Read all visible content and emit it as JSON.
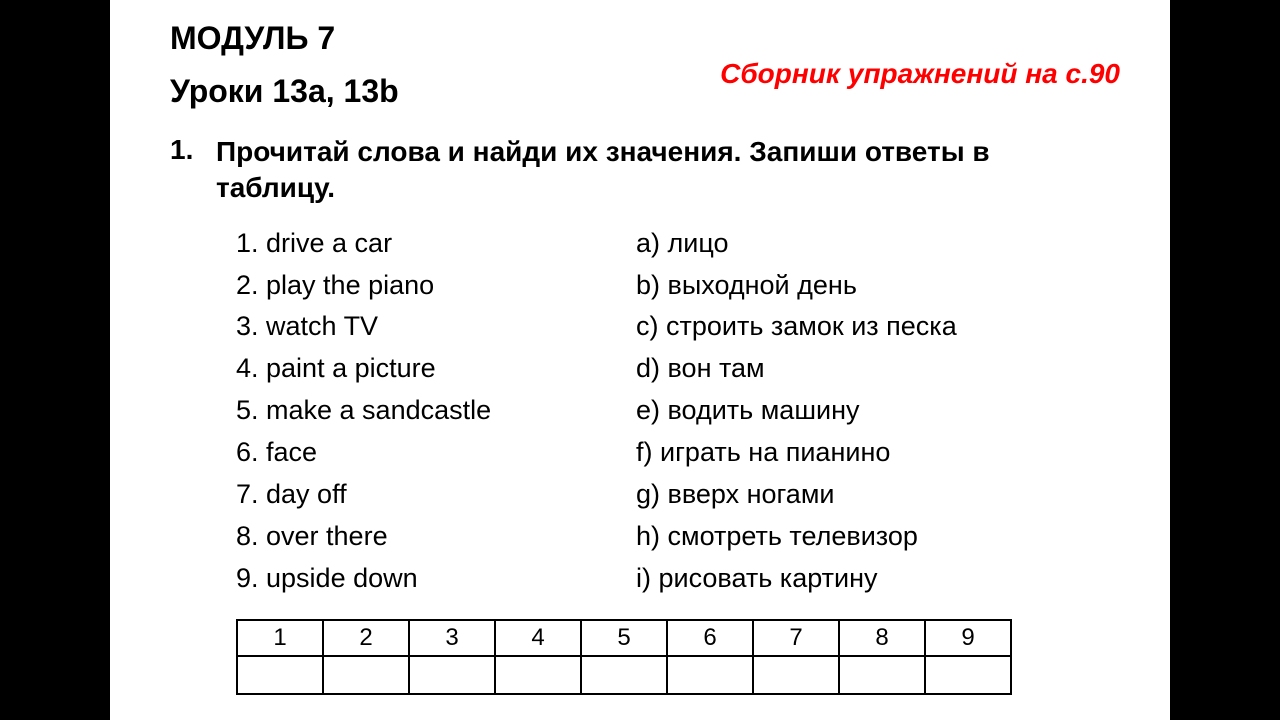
{
  "page": {
    "background_color": "#000000",
    "content_bg": "#ffffff",
    "module_heading": "МОДУЛЬ 7",
    "lessons_heading": "Уроки 13a, 13b",
    "red_note": "Сборник упражнений на с.90",
    "red_note_color": "#ff0000",
    "exercise": {
      "number": "1.",
      "text_line1": "Прочитай слова и найди их значения. Запиши ответы в",
      "text_line2": "таблицу."
    },
    "left_items": [
      "1. drive a car",
      "2. play the piano",
      "3. watch TV",
      "4. paint a picture",
      "5. make a sandcastle",
      "6. face",
      "7. day off",
      "8. over there",
      "9. upside down"
    ],
    "right_items": [
      "a) лицо",
      "b) выходной день",
      "c) строить замок из песка",
      "d) вон там",
      "e) водить машину",
      "f) играть на пианино",
      "g) вверх ногами",
      "h) смотреть телевизор",
      "i) рисовать картину"
    ],
    "table": {
      "headers": [
        "1",
        "2",
        "3",
        "4",
        "5",
        "6",
        "7",
        "8",
        "9"
      ],
      "answers": [
        "",
        "",
        "",
        "",
        "",
        "",
        "",
        "",
        ""
      ]
    },
    "typography": {
      "heading_fontsize": 32,
      "body_fontsize": 27,
      "table_fontsize": 24
    }
  }
}
